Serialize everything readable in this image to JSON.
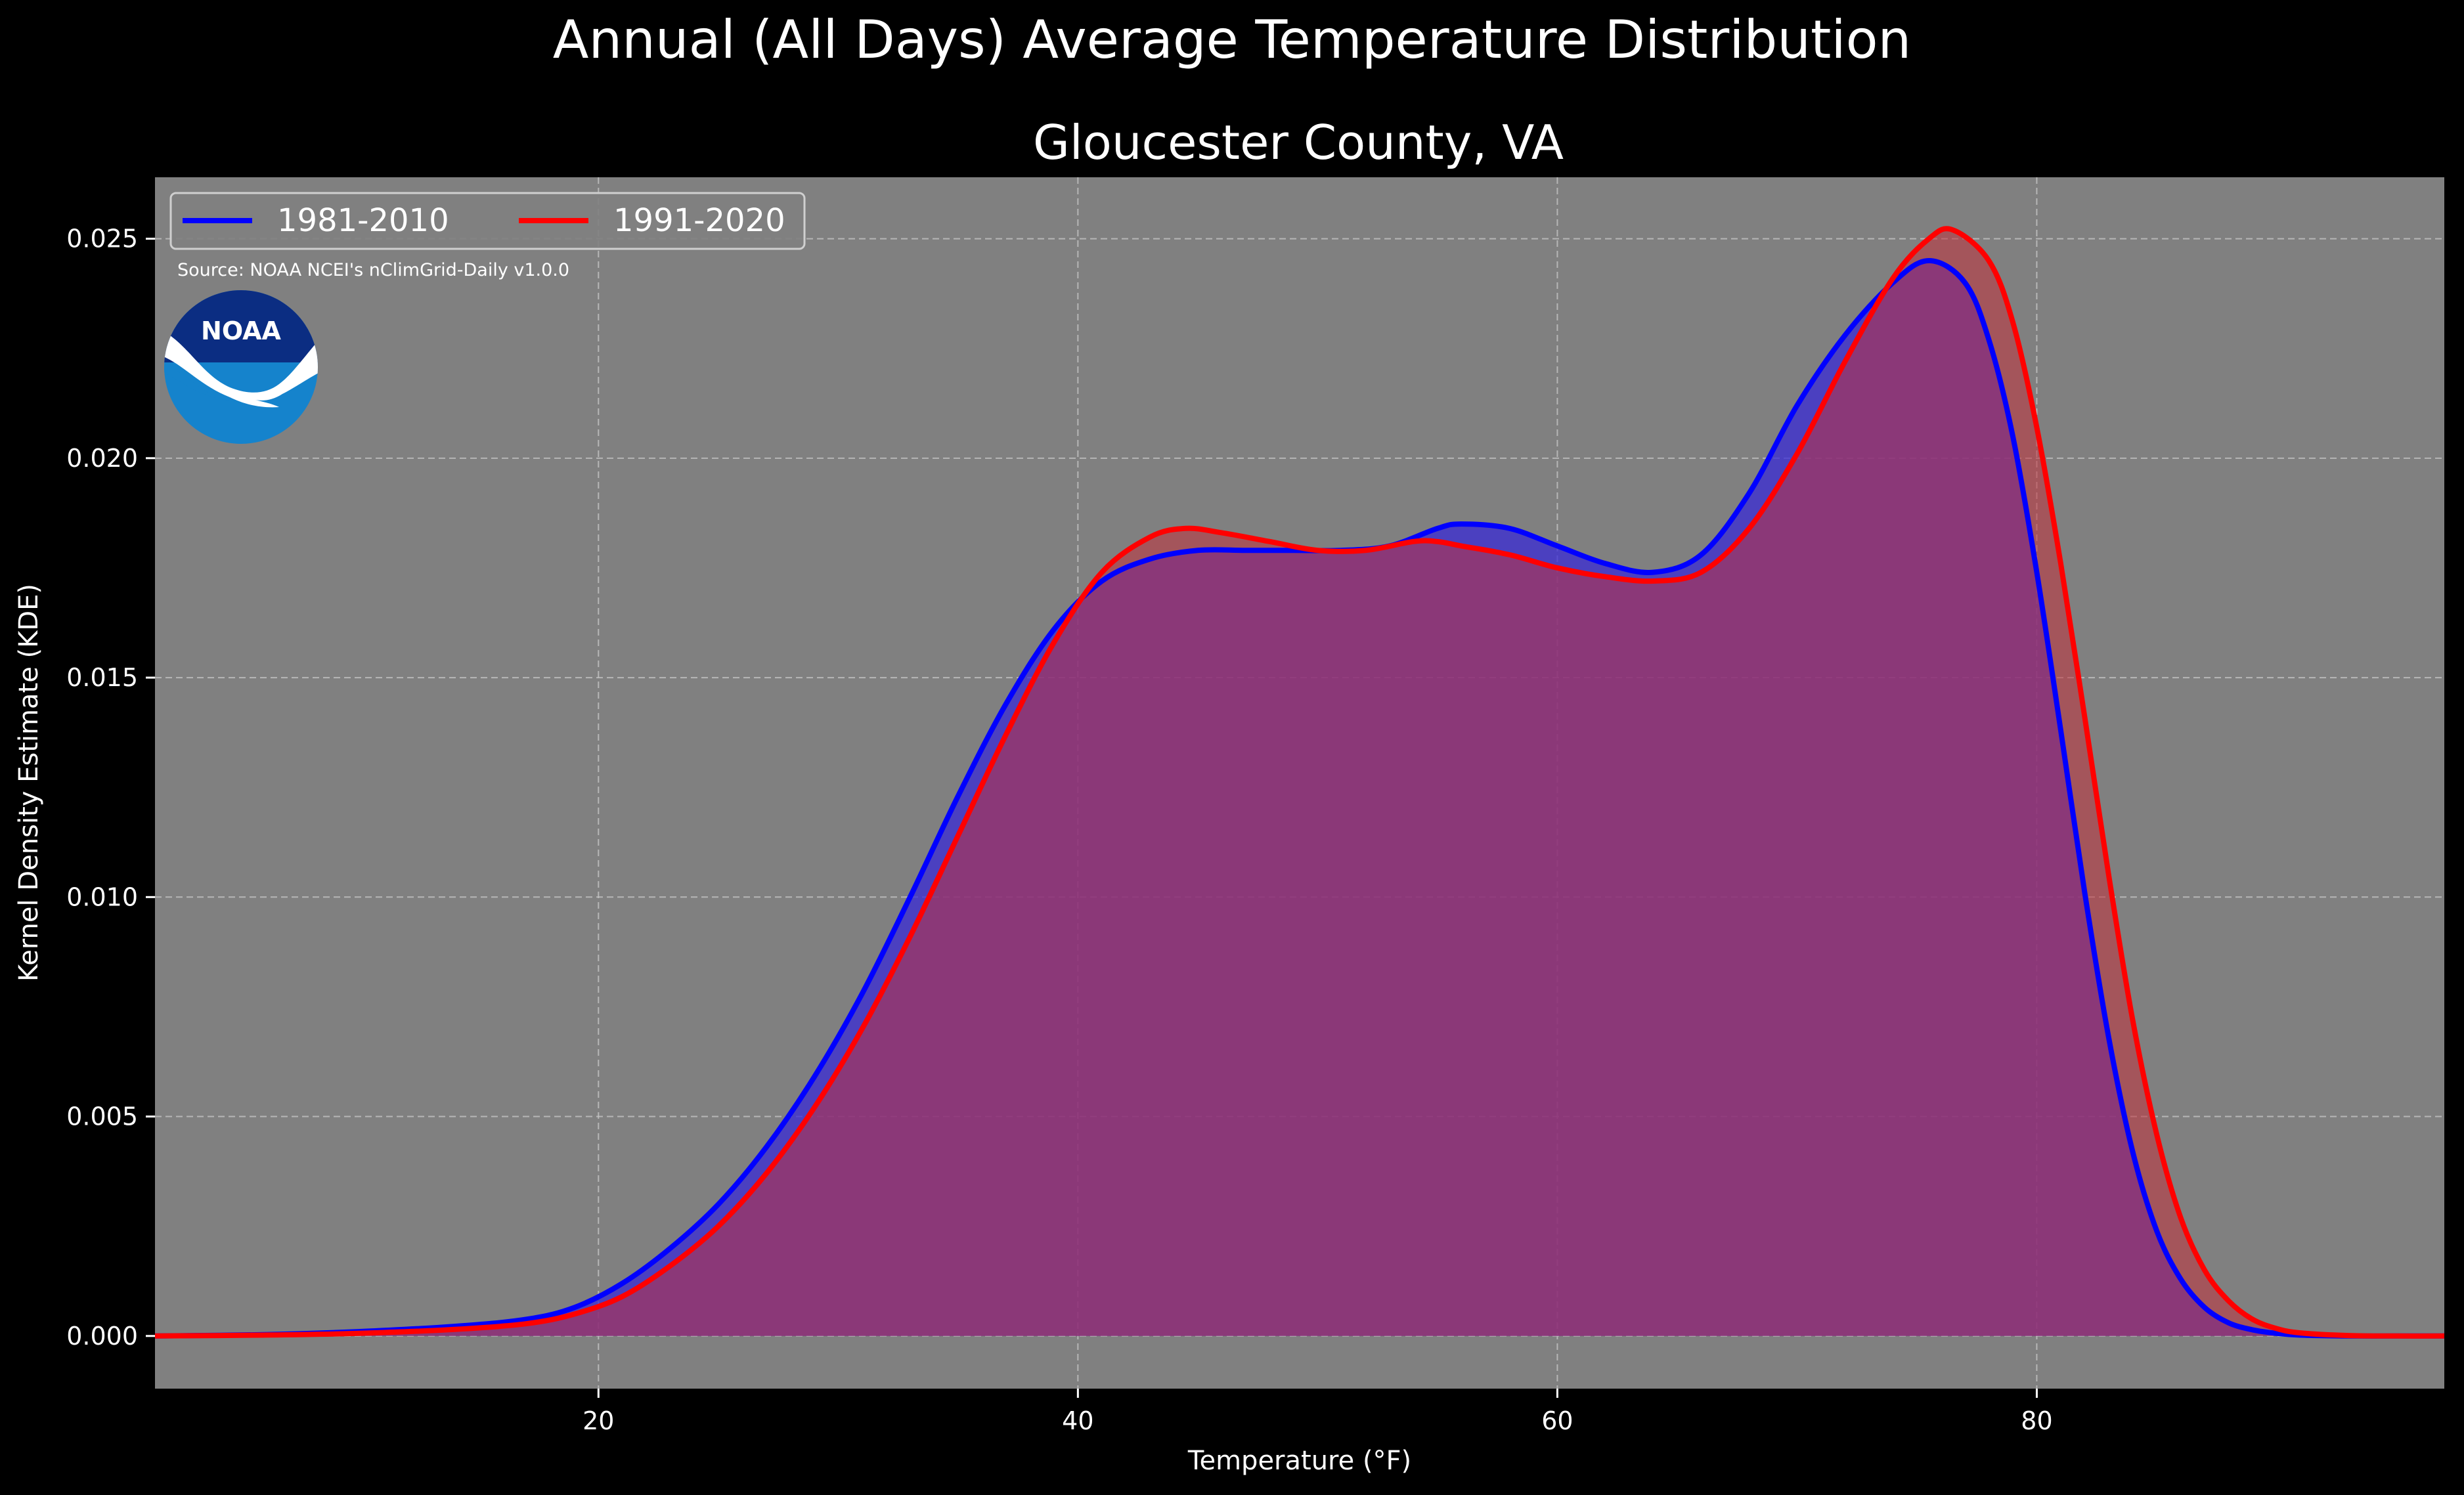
{
  "chart_data": {
    "type": "area",
    "suptitle": "Annual (All Days) Average Temperature Distribution",
    "title": "Gloucester County, VA",
    "xlabel": "Temperature ($^\\circ$F)",
    "xlabel_display": "Temperature (°F)",
    "ylabel": "Kernel Density Estimate (KDE)",
    "xlim": [
      1.5,
      97
    ],
    "ylim": [
      -0.0012,
      0.0264
    ],
    "xticks": [
      20,
      40,
      60,
      80
    ],
    "xtick_labels": [
      "20",
      "40",
      "60",
      "80"
    ],
    "yticks": [
      0.0,
      0.005,
      0.01,
      0.015,
      0.02,
      0.025
    ],
    "ytick_labels": [
      "0.000",
      "0.005",
      "0.010",
      "0.015",
      "0.020",
      "0.025"
    ],
    "grid": true,
    "legend_placement": "upper-left",
    "source_note": "Source: NOAA NCEI's nClimGrid-Daily v1.0.0",
    "logo_text": "NOAA",
    "series": [
      {
        "name": "1981-2010",
        "color": "#0000ff",
        "fill_color": "#3a2bd6",
        "x": [
          1.5,
          6,
          10,
          14,
          17,
          19,
          21,
          23,
          25,
          27,
          29,
          31,
          33,
          35,
          37,
          39,
          41,
          43,
          45,
          47,
          49,
          51,
          53,
          55,
          56,
          58,
          60,
          62,
          64,
          66,
          68,
          70,
          72,
          74,
          75.5,
          77,
          78,
          79,
          80,
          81,
          82,
          83,
          84,
          85,
          86,
          87,
          88,
          89,
          90,
          91,
          93,
          95,
          97
        ],
        "y": [
          0.0,
          3e-05,
          0.0001,
          0.00022,
          0.00038,
          0.00065,
          0.0012,
          0.002,
          0.003,
          0.0043,
          0.0059,
          0.0078,
          0.01,
          0.0123,
          0.0144,
          0.0161,
          0.0172,
          0.0177,
          0.0179,
          0.0179,
          0.0179,
          0.0179,
          0.018,
          0.0184,
          0.0185,
          0.0184,
          0.018,
          0.0176,
          0.0174,
          0.0178,
          0.0192,
          0.0212,
          0.0228,
          0.024,
          0.0245,
          0.024,
          0.0227,
          0.0205,
          0.0174,
          0.0138,
          0.0101,
          0.0068,
          0.0042,
          0.0024,
          0.0013,
          0.00065,
          0.0003,
          0.00014,
          6e-05,
          2e-05,
          0.0,
          0.0,
          0.0
        ]
      },
      {
        "name": "1991-2020",
        "color": "#ff0000",
        "fill_color": "#c1323c",
        "x": [
          1.5,
          6,
          10,
          14,
          17,
          19,
          21,
          23,
          25,
          27,
          29,
          31,
          33,
          35,
          37,
          39,
          41,
          43,
          44.5,
          46,
          48,
          50,
          52,
          54,
          55,
          56,
          58,
          60,
          62,
          64,
          66,
          68,
          70,
          72,
          74,
          75.5,
          76.5,
          78,
          79,
          80,
          81,
          82,
          83,
          84,
          85,
          86,
          87,
          88,
          89,
          90,
          91,
          93,
          95,
          97
        ],
        "y": [
          0.0,
          2e-05,
          6e-05,
          0.00015,
          0.00028,
          0.0005,
          0.0009,
          0.0016,
          0.0025,
          0.0037,
          0.0052,
          0.007,
          0.0091,
          0.0114,
          0.0137,
          0.0158,
          0.0174,
          0.0182,
          0.0184,
          0.0183,
          0.0181,
          0.0179,
          0.0179,
          0.0181,
          0.0181,
          0.018,
          0.0178,
          0.0175,
          0.0173,
          0.0172,
          0.0174,
          0.0184,
          0.0201,
          0.0222,
          0.0241,
          0.025,
          0.0252,
          0.0245,
          0.0231,
          0.0207,
          0.0176,
          0.0141,
          0.0105,
          0.0072,
          0.0046,
          0.0027,
          0.0015,
          0.0008,
          0.00038,
          0.00017,
          7e-05,
          1e-05,
          0.0,
          0.0
        ]
      }
    ],
    "overlap_fill_color": "#9c1e5c",
    "background_color": "#000000",
    "axes_facecolor": "#808080"
  }
}
